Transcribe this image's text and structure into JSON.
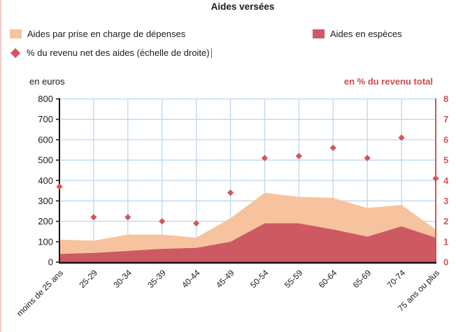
{
  "title": "Aides versées",
  "legend": {
    "depenses_label": "Aides par prise en charge de dépenses",
    "especes_label": "Aides en espèces",
    "pct_label": "% du revenu net des aides (échelle de droite)"
  },
  "colors": {
    "depenses_area": "#f7c39e",
    "especes_area": "#cd5a62",
    "pct_marker": "#d4555b",
    "right_axis": "#d0545a",
    "grid": "#bdd7ee",
    "axis_black": "#111111",
    "text_dark": "#1b1b1b"
  },
  "chart_data": {
    "type": "area",
    "stacked": true,
    "grid": true,
    "legend_position": "top",
    "title": "Aides versées",
    "categories": [
      "moins de 25 ans",
      "25-29",
      "30-34",
      "35-39",
      "40-44",
      "45-49",
      "50-54",
      "55-59",
      "60-64",
      "65-69",
      "70-74",
      "75 ans ou plus"
    ],
    "series": [
      {
        "name": "Aides en espèces",
        "type": "area",
        "axis": "left",
        "color": "#cd5a62",
        "values": [
          40,
          45,
          55,
          65,
          70,
          100,
          190,
          190,
          160,
          125,
          175,
          120
        ]
      },
      {
        "name": "Aides par prise en charge de dépenses",
        "type": "area",
        "axis": "left",
        "color": "#f7c39e",
        "values": [
          70,
          60,
          80,
          70,
          50,
          115,
          150,
          130,
          155,
          140,
          105,
          40
        ]
      },
      {
        "name": "% du revenu net des aides (échelle de droite)",
        "type": "scatter",
        "marker": "diamond",
        "axis": "right",
        "color": "#d4555b",
        "values": [
          3.7,
          2.2,
          2.2,
          2.0,
          1.9,
          3.4,
          5.1,
          5.2,
          5.6,
          5.1,
          6.1,
          4.1
        ]
      }
    ],
    "stacked_totals": [
      110,
      105,
      135,
      135,
      120,
      215,
      340,
      320,
      315,
      265,
      280,
      160
    ],
    "left_axis": {
      "title": "en euros",
      "min": 0,
      "max": 800,
      "step": 100
    },
    "right_axis": {
      "title": "en % du revenu total",
      "min": 0,
      "max": 8,
      "step": 1
    }
  }
}
